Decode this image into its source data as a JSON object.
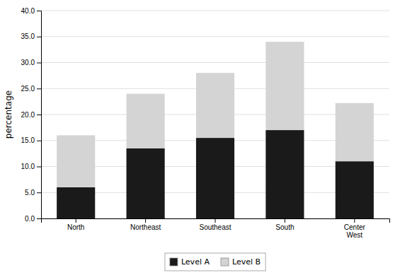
{
  "chart_data": {
    "type": "bar",
    "stacked": true,
    "categories": [
      "North",
      "Northeast",
      "Southeast",
      "South",
      "Center\nWest"
    ],
    "series": [
      {
        "name": "Level A",
        "color": "#1a1a1a",
        "values": [
          6.0,
          13.5,
          15.5,
          17.0,
          11.0
        ]
      },
      {
        "name": "Level B",
        "color": "#d4d4d4",
        "values": [
          10.0,
          10.5,
          12.5,
          17.0,
          11.2
        ]
      }
    ],
    "ylabel": "percentage",
    "ylim": [
      0,
      40
    ],
    "yticks": [
      {
        "value": 0,
        "label": "0.0"
      },
      {
        "value": 5,
        "label": "5.0"
      },
      {
        "value": 10,
        "label": "10.0"
      },
      {
        "value": 15,
        "label": "15.0"
      },
      {
        "value": 20,
        "label": "20.0"
      },
      {
        "value": 25,
        "label": "25.0"
      },
      {
        "value": 30,
        "label": "30.0"
      },
      {
        "value": 35,
        "label": "35.0"
      },
      {
        "value": 40,
        "label": "40.0"
      }
    ],
    "grid": true,
    "legend": "bottom"
  }
}
